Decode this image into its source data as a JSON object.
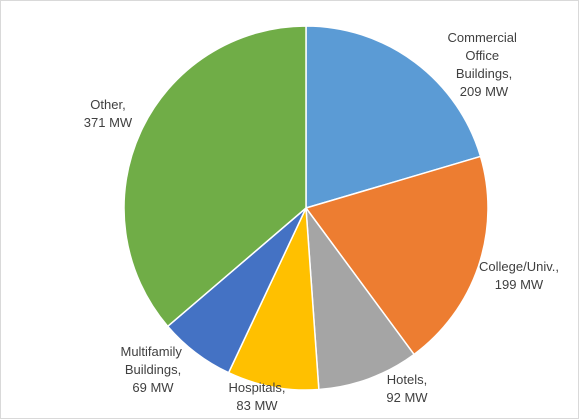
{
  "chart_data": {
    "type": "pie",
    "categories": [
      "Commercial Office Buildings,",
      "College/Univ.,",
      "Hotels,",
      "Hospitals,",
      "Multifamily Buildings,",
      "Other,"
    ],
    "values": [
      209,
      199,
      92,
      83,
      69,
      371
    ],
    "value_labels": [
      "209 MW",
      "199 MW",
      "92 MW",
      "83 MW",
      "69 MW",
      "371 MW"
    ],
    "colors": [
      "#5b9bd5",
      "#ed7d31",
      "#a5a5a5",
      "#ffc000",
      "#4472c4",
      "#70ad47"
    ]
  }
}
